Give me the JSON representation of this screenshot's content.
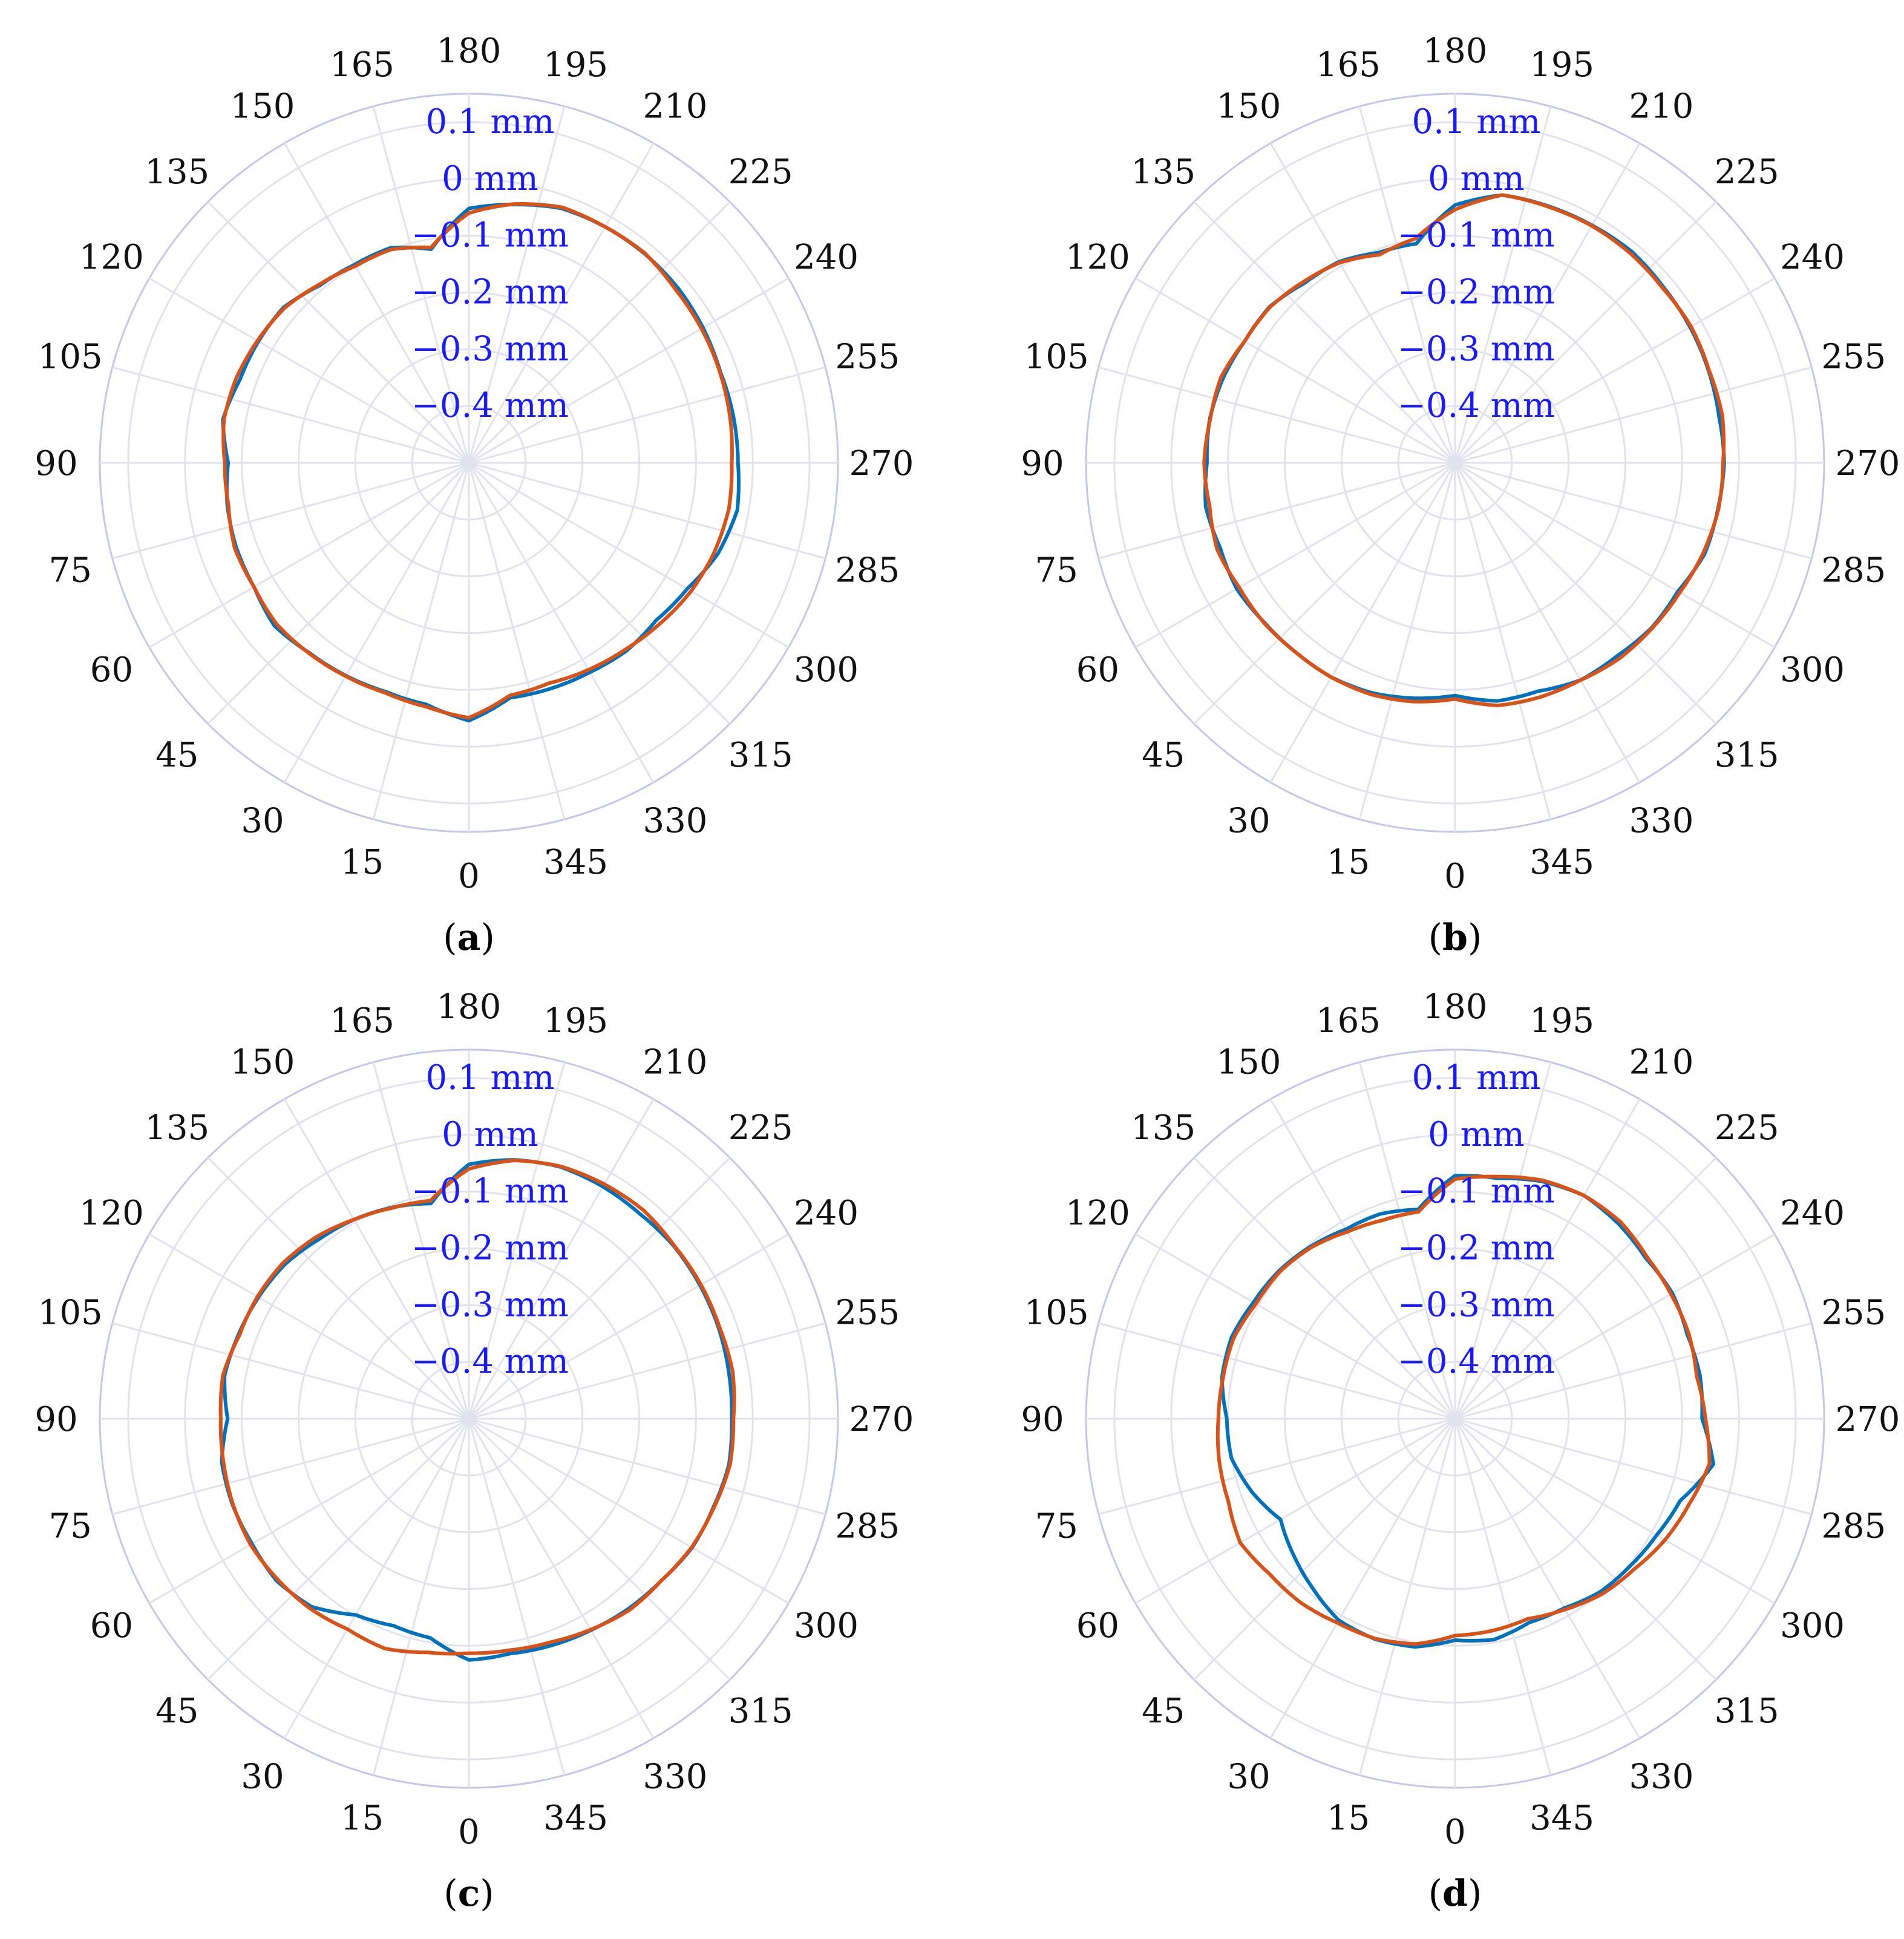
{
  "chart_data": [
    {
      "type": "polar-line",
      "panel_label": "a",
      "radial_tick_labels": [
        "0.1 mm",
        "0 mm",
        "−0.1 mm",
        "−0.2 mm",
        "−0.3 mm",
        "−0.4 mm"
      ],
      "radial_ticks": [
        0.1,
        0,
        -0.1,
        -0.2,
        -0.3,
        -0.4
      ],
      "radial_range_mm": [
        -0.5,
        0.15
      ],
      "angular_ticks_deg": [
        0,
        15,
        30,
        45,
        60,
        75,
        90,
        105,
        120,
        135,
        150,
        165,
        180,
        195,
        210,
        225,
        240,
        255,
        270,
        285,
        300,
        315,
        330,
        345
      ],
      "zero_direction": "bottom",
      "angle_direction": "counterclockwise",
      "grid": true,
      "series": [
        {
          "color": "#0072BD",
          "angles_deg": [
            0,
            10,
            20,
            30,
            40,
            50,
            60,
            70,
            80,
            90,
            100,
            110,
            120,
            130,
            140,
            150,
            160,
            170,
            180,
            190,
            200,
            210,
            220,
            230,
            240,
            250,
            260,
            270,
            280,
            290,
            300,
            310,
            320,
            330,
            340,
            350
          ],
          "values_mm": [
            -0.046,
            -0.068,
            -0.071,
            -0.067,
            -0.063,
            -0.053,
            -0.063,
            -0.064,
            -0.068,
            -0.076,
            -0.06,
            -0.071,
            -0.072,
            -0.074,
            -0.092,
            -0.097,
            -0.097,
            -0.118,
            -0.052,
            -0.038,
            -0.023,
            -0.02,
            -0.019,
            -0.02,
            -0.024,
            -0.029,
            -0.027,
            -0.026,
            -0.02,
            -0.033,
            -0.056,
            -0.069,
            -0.068,
            -0.074,
            -0.077,
            -0.08
          ]
        },
        {
          "color": "#D95319",
          "angles_deg": [
            0,
            10,
            20,
            30,
            40,
            50,
            60,
            70,
            80,
            90,
            100,
            110,
            120,
            130,
            140,
            150,
            160,
            170,
            180,
            190,
            200,
            210,
            220,
            230,
            240,
            250,
            260,
            270,
            280,
            290,
            300,
            310,
            320,
            330,
            340,
            350
          ],
          "values_mm": [
            -0.051,
            -0.064,
            -0.069,
            -0.066,
            -0.062,
            -0.058,
            -0.063,
            -0.061,
            -0.07,
            -0.07,
            -0.062,
            -0.064,
            -0.07,
            -0.076,
            -0.09,
            -0.1,
            -0.1,
            -0.115,
            -0.06,
            -0.037,
            -0.021,
            -0.02,
            -0.018,
            -0.025,
            -0.027,
            -0.03,
            -0.033,
            -0.037,
            -0.035,
            -0.04,
            -0.048,
            -0.06,
            -0.071,
            -0.079,
            -0.087,
            -0.084
          ]
        }
      ]
    },
    {
      "type": "polar-line",
      "panel_label": "b",
      "radial_tick_labels": [
        "0.1 mm",
        "0 mm",
        "−0.1 mm",
        "−0.2 mm",
        "−0.3 mm",
        "−0.4 mm"
      ],
      "radial_ticks": [
        0.1,
        0,
        -0.1,
        -0.2,
        -0.3,
        -0.4
      ],
      "radial_range_mm": [
        -0.5,
        0.15
      ],
      "angular_ticks_deg": [
        0,
        15,
        30,
        45,
        60,
        75,
        90,
        105,
        120,
        135,
        150,
        165,
        180,
        195,
        210,
        225,
        240,
        255,
        270,
        285,
        300,
        315,
        330,
        345
      ],
      "zero_direction": "bottom",
      "angle_direction": "counterclockwise",
      "grid": true,
      "series": [
        {
          "color": "#0072BD",
          "angles_deg": [
            0,
            10,
            20,
            30,
            40,
            50,
            60,
            70,
            80,
            90,
            100,
            110,
            120,
            130,
            140,
            150,
            160,
            170,
            180,
            190,
            200,
            210,
            220,
            230,
            240,
            250,
            260,
            270,
            280,
            290,
            300,
            310,
            320,
            330,
            340,
            350
          ],
          "values_mm": [
            -0.09,
            -0.079,
            -0.069,
            -0.064,
            -0.064,
            -0.062,
            -0.056,
            -0.06,
            -0.054,
            -0.063,
            -0.061,
            -0.065,
            -0.072,
            -0.073,
            -0.087,
            -0.091,
            -0.106,
            -0.108,
            -0.046,
            -0.021,
            -0.019,
            -0.017,
            -0.015,
            -0.02,
            -0.022,
            -0.025,
            -0.028,
            -0.026,
            -0.03,
            -0.032,
            -0.047,
            -0.048,
            -0.056,
            -0.058,
            -0.072,
            -0.074
          ]
        },
        {
          "color": "#D95319",
          "angles_deg": [
            0,
            10,
            20,
            30,
            40,
            50,
            60,
            70,
            80,
            90,
            100,
            110,
            120,
            130,
            140,
            150,
            160,
            170,
            180,
            190,
            200,
            210,
            220,
            230,
            240,
            250,
            260,
            270,
            280,
            290,
            300,
            310,
            320,
            330,
            340,
            350
          ],
          "values_mm": [
            -0.084,
            -0.073,
            -0.066,
            -0.064,
            -0.064,
            -0.061,
            -0.061,
            -0.054,
            -0.061,
            -0.058,
            -0.062,
            -0.061,
            -0.072,
            -0.074,
            -0.084,
            -0.093,
            -0.11,
            -0.099,
            -0.054,
            -0.021,
            -0.02,
            -0.018,
            -0.019,
            -0.022,
            -0.02,
            -0.024,
            -0.022,
            -0.028,
            -0.029,
            -0.035,
            -0.043,
            -0.047,
            -0.05,
            -0.058,
            -0.061,
            -0.066
          ]
        }
      ]
    },
    {
      "type": "polar-line",
      "panel_label": "c",
      "radial_tick_labels": [
        "0.1 mm",
        "0 mm",
        "−0.1 mm",
        "−0.2 mm",
        "−0.3 mm",
        "−0.4 mm"
      ],
      "radial_ticks": [
        0.1,
        0,
        -0.1,
        -0.2,
        -0.3,
        -0.4
      ],
      "radial_range_mm": [
        -0.5,
        0.15
      ],
      "angular_ticks_deg": [
        0,
        15,
        30,
        45,
        60,
        75,
        90,
        105,
        120,
        135,
        150,
        165,
        180,
        195,
        210,
        225,
        240,
        255,
        270,
        285,
        300,
        315,
        330,
        345
      ],
      "zero_direction": "bottom",
      "angle_direction": "counterclockwise",
      "grid": true,
      "series": [
        {
          "color": "#0072BD",
          "angles_deg": [
            0,
            10,
            20,
            30,
            40,
            50,
            60,
            70,
            80,
            90,
            100,
            110,
            120,
            130,
            140,
            150,
            160,
            170,
            180,
            190,
            200,
            210,
            220,
            230,
            240,
            250,
            260,
            270,
            280,
            290,
            300,
            310,
            320,
            330,
            340,
            350
          ],
          "values_mm": [
            -0.075,
            -0.108,
            -0.112,
            -0.101,
            -0.068,
            -0.057,
            -0.059,
            -0.057,
            -0.058,
            -0.075,
            -0.063,
            -0.068,
            -0.072,
            -0.077,
            -0.088,
            -0.095,
            -0.104,
            -0.115,
            -0.052,
            -0.037,
            -0.028,
            -0.028,
            -0.03,
            -0.028,
            -0.03,
            -0.032,
            -0.035,
            -0.037,
            -0.035,
            -0.042,
            -0.046,
            -0.057,
            -0.063,
            -0.07,
            -0.075,
            -0.08
          ]
        },
        {
          "color": "#D95319",
          "angles_deg": [
            0,
            10,
            20,
            30,
            40,
            50,
            60,
            70,
            80,
            90,
            100,
            110,
            120,
            130,
            140,
            150,
            160,
            170,
            180,
            190,
            200,
            210,
            220,
            230,
            240,
            250,
            260,
            270,
            280,
            290,
            300,
            310,
            320,
            330,
            340,
            350
          ],
          "values_mm": [
            -0.087,
            -0.082,
            -0.069,
            -0.072,
            -0.064,
            -0.06,
            -0.056,
            -0.058,
            -0.061,
            -0.063,
            -0.06,
            -0.07,
            -0.07,
            -0.073,
            -0.082,
            -0.095,
            -0.105,
            -0.11,
            -0.06,
            -0.038,
            -0.027,
            -0.023,
            -0.021,
            -0.027,
            -0.028,
            -0.03,
            -0.028,
            -0.034,
            -0.033,
            -0.041,
            -0.047,
            -0.057,
            -0.06,
            -0.071,
            -0.081,
            -0.086
          ]
        }
      ]
    },
    {
      "type": "polar-line",
      "panel_label": "d",
      "radial_tick_labels": [
        "0.1 mm",
        "0 mm",
        "−0.1 mm",
        "−0.2 mm",
        "−0.3 mm",
        "−0.4 mm"
      ],
      "radial_ticks": [
        0.1,
        0,
        -0.1,
        -0.2,
        -0.3,
        -0.4
      ],
      "radial_range_mm": [
        -0.5,
        0.15
      ],
      "angular_ticks_deg": [
        0,
        15,
        30,
        45,
        60,
        75,
        90,
        105,
        120,
        135,
        150,
        165,
        180,
        195,
        210,
        225,
        240,
        255,
        270,
        285,
        300,
        315,
        330,
        345
      ],
      "zero_direction": "bottom",
      "angle_direction": "counterclockwise",
      "grid": true,
      "series": [
        {
          "color": "#0072BD",
          "angles_deg": [
            0,
            10,
            20,
            30,
            40,
            50,
            60,
            70,
            80,
            90,
            100,
            110,
            120,
            130,
            140,
            150,
            160,
            170,
            180,
            190,
            200,
            210,
            220,
            230,
            240,
            250,
            260,
            270,
            280,
            290,
            300,
            310,
            320,
            330,
            340,
            350
          ],
          "values_mm": [
            -0.11,
            -0.092,
            -0.087,
            -0.09,
            -0.11,
            -0.128,
            -0.145,
            -0.12,
            -0.1,
            -0.098,
            -0.083,
            -0.081,
            -0.09,
            -0.095,
            -0.104,
            -0.115,
            -0.116,
            -0.126,
            -0.072,
            -0.07,
            -0.055,
            -0.046,
            -0.052,
            -0.061,
            -0.058,
            -0.065,
            -0.062,
            -0.065,
            -0.038,
            -0.078,
            -0.09,
            -0.097,
            -0.102,
            -0.115,
            -0.118,
            -0.105
          ]
        },
        {
          "color": "#D95319",
          "angles_deg": [
            0,
            10,
            20,
            30,
            40,
            50,
            60,
            70,
            80,
            90,
            100,
            110,
            120,
            130,
            140,
            150,
            160,
            170,
            180,
            190,
            200,
            210,
            220,
            230,
            240,
            250,
            260,
            270,
            280,
            290,
            300,
            310,
            320,
            330,
            340,
            350
          ],
          "values_mm": [
            -0.118,
            -0.097,
            -0.088,
            -0.085,
            -0.077,
            -0.074,
            -0.063,
            -0.075,
            -0.078,
            -0.083,
            -0.085,
            -0.085,
            -0.095,
            -0.097,
            -0.106,
            -0.12,
            -0.128,
            -0.13,
            -0.078,
            -0.067,
            -0.053,
            -0.046,
            -0.047,
            -0.058,
            -0.061,
            -0.062,
            -0.068,
            -0.059,
            -0.045,
            -0.061,
            -0.073,
            -0.088,
            -0.097,
            -0.112,
            -0.125,
            -0.121
          ]
        }
      ]
    }
  ]
}
